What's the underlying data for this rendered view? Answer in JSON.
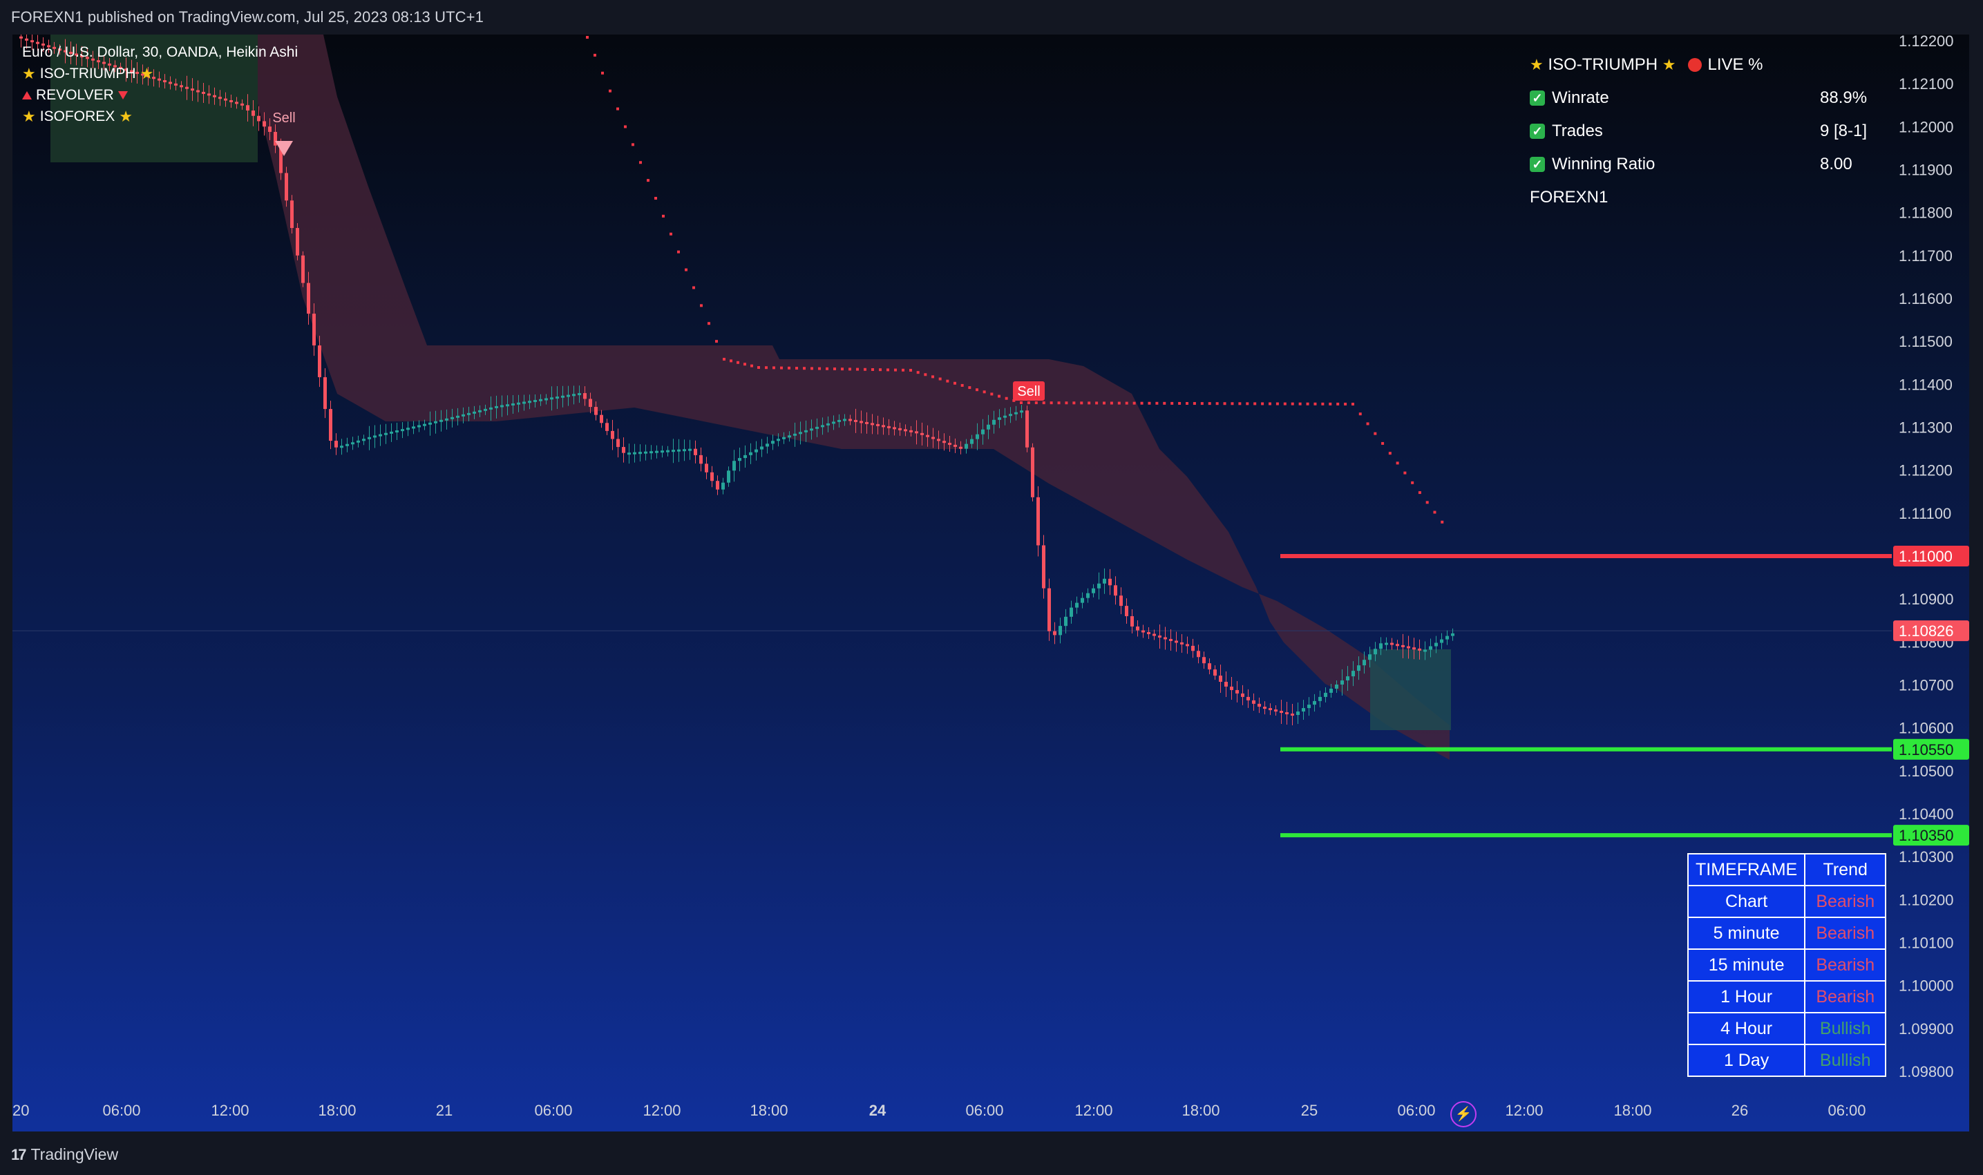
{
  "header": {
    "published_text": "FOREXN1 published on TradingView.com, Jul 25, 2023 08:13 UTC+1"
  },
  "legend": {
    "symbol": "Euro / U.S. Dollar, 30, OANDA, Heikin Ashi",
    "indicators": [
      "ISO-TRIUMPH",
      "REVOLVER",
      "ISOFOREX"
    ]
  },
  "stats": {
    "title": "ISO-TRIUMPH",
    "live": "LIVE %",
    "rows": [
      {
        "label": "Winrate",
        "value": "88.9%"
      },
      {
        "label": "Trades",
        "value": "9 [8-1]"
      },
      {
        "label": "Winning Ratio",
        "value": "8.00"
      }
    ],
    "author": "FOREXN1"
  },
  "trend_table": {
    "headers": [
      "TIMEFRAME",
      "Trend"
    ],
    "rows": [
      {
        "timeframe": "Chart",
        "trend": "Bearish"
      },
      {
        "timeframe": "5 minute",
        "trend": "Bearish"
      },
      {
        "timeframe": "15 minute",
        "trend": "Bearish"
      },
      {
        "timeframe": "1 Hour",
        "trend": "Bearish"
      },
      {
        "timeframe": "4 Hour",
        "trend": "Bullish"
      },
      {
        "timeframe": "1 Day",
        "trend": "Bullish"
      }
    ]
  },
  "chart_data": {
    "type": "candlestick",
    "price_axis_ticks": [
      "1.12200",
      "1.12100",
      "1.12000",
      "1.11900",
      "1.11800",
      "1.11700",
      "1.11600",
      "1.11500",
      "1.11400",
      "1.11300",
      "1.11200",
      "1.11100",
      "1.10900",
      "1.10800",
      "1.10700",
      "1.10600",
      "1.10500",
      "1.10400",
      "1.10300",
      "1.10200",
      "1.10100",
      "1.10000",
      "1.09900",
      "1.09800"
    ],
    "time_axis_ticks": [
      "20",
      "06:00",
      "12:00",
      "18:00",
      "21",
      "06:00",
      "12:00",
      "18:00",
      "24",
      "06:00",
      "12:00",
      "18:00",
      "25",
      "06:00",
      "12:00",
      "18:00",
      "26",
      "06:00"
    ],
    "ylim": [
      1.0974,
      1.1226
    ],
    "levels": [
      {
        "label": "1.11000",
        "price": 1.11,
        "color": "#f23645"
      },
      {
        "label": "1.10550",
        "price": 1.1055,
        "color": "#2ee83a"
      },
      {
        "label": "1.10350",
        "price": 1.1035,
        "color": "#2ee83a"
      }
    ],
    "current_price": {
      "label": "1.10826",
      "price": 1.10826,
      "color": "#f7525f"
    },
    "signals": [
      {
        "label": "Sell"
      },
      {
        "label": "Sell"
      }
    ],
    "colors": {
      "bull": "#26a69a",
      "bear": "#f7525f",
      "cloud": "#4a2438",
      "dots": "#f23645"
    }
  }
}
